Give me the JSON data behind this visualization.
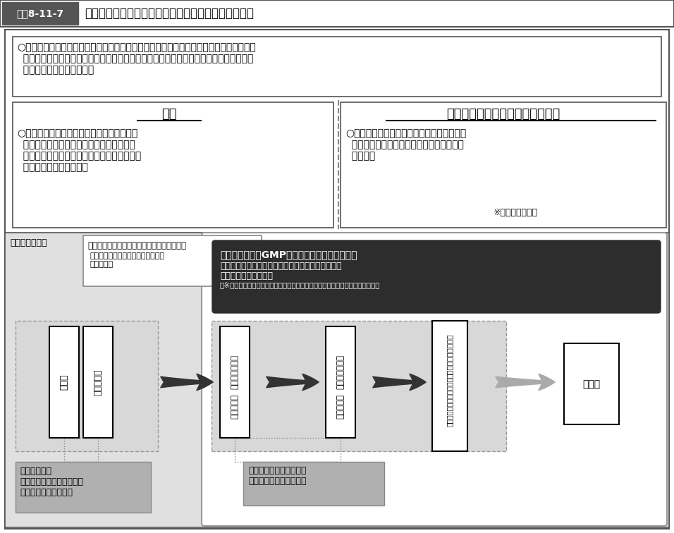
{
  "title_box": "図表8-11-7",
  "title_text": "国際整合的な食品用器具・容器包装の衛生規制の整備",
  "intro_text": "○食品用器具・容器包装の安全性や規制の国際整合性の確保のため、規格が定まっていな\n  い原材料を使用した器具・容器包装の販売等の禁止等を行い、安全が担保されたものの\n  み使用できることとする。",
  "genkou_title": "現行",
  "kaisei_title": "改正後（ポジティブリスト制度）",
  "genkou_text": "○原則使用を認めた上で、使用を制限する物\n  質を定める。海外で使用が禁止されている\n  物質であっても、規格基準を定めない限り、\n  直ちに規制はできない。",
  "kaisei_text": "○原則使用を禁止した上で、使用を認める物\n  質を定め、安全が担保されたもののみ使用\n  できる。",
  "kaisei_note": "※合成樹脂が対象",
  "sanko_text": "（参考）全体像",
  "posi_title": "ポジティブリスト制度による国のリスク管理",
  "posi_items": "・監視指導（事業者の把握、指導）\n・輸入監視",
  "gmp_line1": "製造管理規範（GMP）による製造管理の制度化",
  "gmp_line2": "＊原材料の確認　　＊製品の規格基準への適合確認",
  "gmp_line3": "＊製造の記録の保存等",
  "gmp_line4": "　※ポジティブリスト対象外の器具・容器包装製造事業者は一般衛生管理を適用",
  "box1a": "原材料",
  "box1b": "製造事業者",
  "box2a": "器具・容器包装",
  "box2b": "製造事業者",
  "box3a": "器具・容器包装",
  "box3b": "販売事業者",
  "box4a": "食品製造・販売事業者",
  "box4b": "（食品・容器包装使用者）",
  "box5": "消費者",
  "btm1": "求めに応じ、\nポジティブリスト適合性を\n確認できる情報を提供",
  "btm2": "ポジティブリスト適合性\nを確認できる情報を提供"
}
